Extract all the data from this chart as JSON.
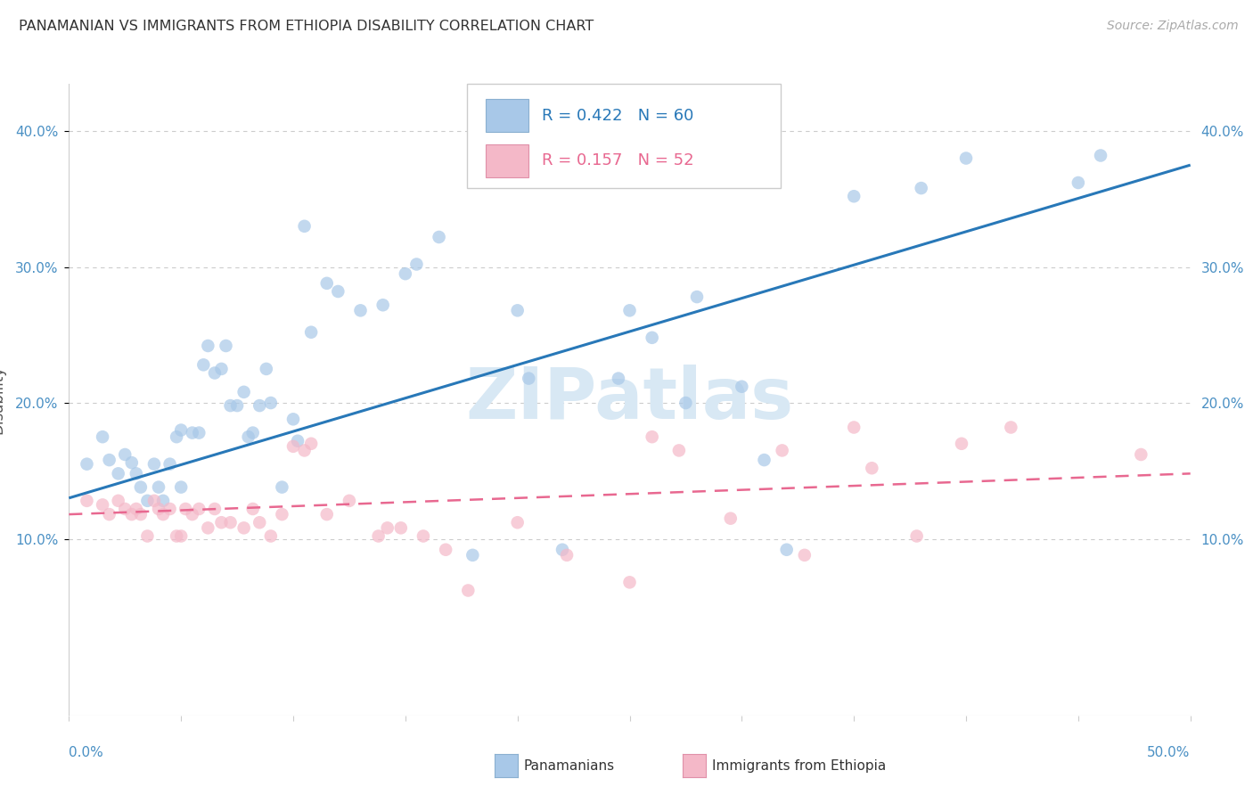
{
  "title": "PANAMANIAN VS IMMIGRANTS FROM ETHIOPIA DISABILITY CORRELATION CHART",
  "source": "Source: ZipAtlas.com",
  "ylabel": "Disability",
  "xlim": [
    0.0,
    0.5
  ],
  "ylim": [
    -0.03,
    0.435
  ],
  "yticks": [
    0.1,
    0.2,
    0.3,
    0.4
  ],
  "ytick_labels": [
    "10.0%",
    "20.0%",
    "30.0%",
    "40.0%"
  ],
  "xticks": [
    0.0,
    0.05,
    0.1,
    0.15,
    0.2,
    0.25,
    0.3,
    0.35,
    0.4,
    0.45,
    0.5
  ],
  "legend_blue_r": "0.422",
  "legend_blue_n": "60",
  "legend_pink_r": "0.157",
  "legend_pink_n": "52",
  "legend_label_blue": "Panamanians",
  "legend_label_pink": "Immigrants from Ethiopia",
  "blue_color": "#a8c8e8",
  "pink_color": "#f4b8c8",
  "blue_line_color": "#2878b8",
  "pink_line_color": "#e86890",
  "watermark_color": "#d8e8f4",
  "blue_scatter_x": [
    0.008,
    0.015,
    0.018,
    0.022,
    0.025,
    0.028,
    0.03,
    0.032,
    0.035,
    0.038,
    0.04,
    0.042,
    0.045,
    0.048,
    0.05,
    0.05,
    0.055,
    0.058,
    0.06,
    0.062,
    0.065,
    0.068,
    0.07,
    0.072,
    0.075,
    0.078,
    0.08,
    0.082,
    0.085,
    0.088,
    0.09,
    0.095,
    0.1,
    0.102,
    0.105,
    0.108,
    0.115,
    0.12,
    0.13,
    0.14,
    0.15,
    0.155,
    0.165,
    0.18,
    0.2,
    0.205,
    0.22,
    0.245,
    0.25,
    0.26,
    0.275,
    0.28,
    0.3,
    0.31,
    0.32,
    0.35,
    0.38,
    0.4,
    0.45,
    0.46
  ],
  "blue_scatter_y": [
    0.155,
    0.175,
    0.158,
    0.148,
    0.162,
    0.156,
    0.148,
    0.138,
    0.128,
    0.155,
    0.138,
    0.128,
    0.155,
    0.175,
    0.138,
    0.18,
    0.178,
    0.178,
    0.228,
    0.242,
    0.222,
    0.225,
    0.242,
    0.198,
    0.198,
    0.208,
    0.175,
    0.178,
    0.198,
    0.225,
    0.2,
    0.138,
    0.188,
    0.172,
    0.33,
    0.252,
    0.288,
    0.282,
    0.268,
    0.272,
    0.295,
    0.302,
    0.322,
    0.088,
    0.268,
    0.218,
    0.092,
    0.218,
    0.268,
    0.248,
    0.2,
    0.278,
    0.212,
    0.158,
    0.092,
    0.352,
    0.358,
    0.38,
    0.362,
    0.382
  ],
  "pink_scatter_x": [
    0.008,
    0.015,
    0.018,
    0.022,
    0.025,
    0.028,
    0.03,
    0.032,
    0.035,
    0.038,
    0.04,
    0.042,
    0.045,
    0.048,
    0.05,
    0.052,
    0.055,
    0.058,
    0.062,
    0.065,
    0.068,
    0.072,
    0.078,
    0.082,
    0.085,
    0.09,
    0.095,
    0.1,
    0.105,
    0.108,
    0.115,
    0.125,
    0.138,
    0.142,
    0.148,
    0.158,
    0.168,
    0.178,
    0.2,
    0.222,
    0.25,
    0.26,
    0.272,
    0.295,
    0.318,
    0.328,
    0.35,
    0.358,
    0.378,
    0.398,
    0.42,
    0.478
  ],
  "pink_scatter_y": [
    0.128,
    0.125,
    0.118,
    0.128,
    0.122,
    0.118,
    0.122,
    0.118,
    0.102,
    0.128,
    0.122,
    0.118,
    0.122,
    0.102,
    0.102,
    0.122,
    0.118,
    0.122,
    0.108,
    0.122,
    0.112,
    0.112,
    0.108,
    0.122,
    0.112,
    0.102,
    0.118,
    0.168,
    0.165,
    0.17,
    0.118,
    0.128,
    0.102,
    0.108,
    0.108,
    0.102,
    0.092,
    0.062,
    0.112,
    0.088,
    0.068,
    0.175,
    0.165,
    0.115,
    0.165,
    0.088,
    0.182,
    0.152,
    0.102,
    0.17,
    0.182,
    0.162
  ],
  "blue_line_x": [
    0.0,
    0.5
  ],
  "blue_line_y": [
    0.13,
    0.375
  ],
  "pink_line_x": [
    0.0,
    0.5
  ],
  "pink_line_y": [
    0.118,
    0.148
  ]
}
